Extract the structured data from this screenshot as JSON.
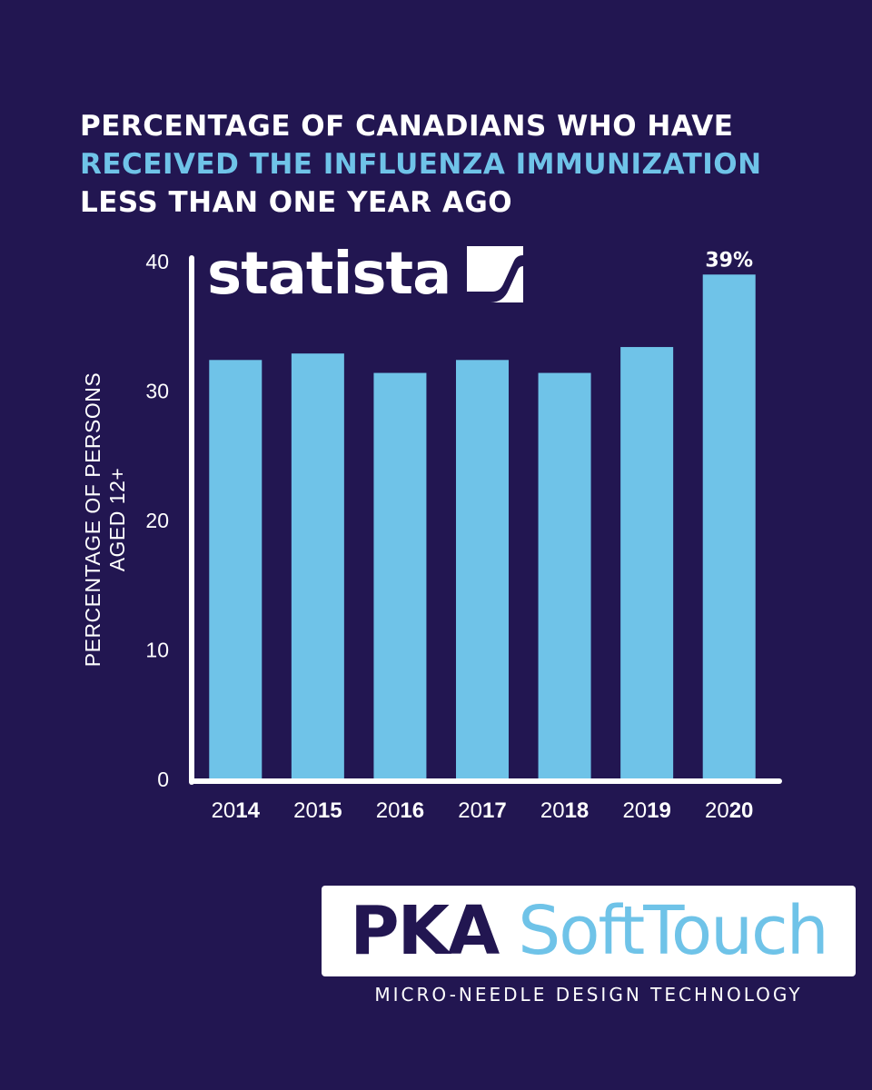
{
  "title": {
    "line1": "PERCENTAGE OF CANADIANS WHO HAVE",
    "line2": "RECEIVED THE INFLUENZA IMMUNIZATION",
    "line3": "LESS THAN ONE YEAR AGO"
  },
  "source_logo": {
    "text": "statista"
  },
  "colors": {
    "background": "#221651",
    "bar": "#6fc3e8",
    "highlight": "#6fc3e8",
    "axis": "#ffffff"
  },
  "chart_data": {
    "type": "bar",
    "categories": [
      "2014",
      "2015",
      "2016",
      "2017",
      "2018",
      "2019",
      "2020"
    ],
    "category_prefix": [
      "20",
      "20",
      "20",
      "20",
      "20",
      "20",
      "20"
    ],
    "category_suffix": [
      "14",
      "15",
      "16",
      "17",
      "18",
      "19",
      "20"
    ],
    "values": [
      32.4,
      32.9,
      31.4,
      32.4,
      31.4,
      33.4,
      39
    ],
    "data_labels": [
      {
        "index": 6,
        "text": "39%"
      }
    ],
    "yticks": [
      0,
      10,
      20,
      30,
      40
    ],
    "ylim": [
      0,
      40
    ],
    "ylabel_line1": "PERCENTAGE OF PERSONS",
    "ylabel_line2": "AGED 12+",
    "xlabel": "",
    "grid": false
  },
  "brand": {
    "name_bold": "PKA",
    "name_light": "SoftTouch",
    "tagline": "MICRO-NEEDLE DESIGN TECHNOLOGY"
  }
}
